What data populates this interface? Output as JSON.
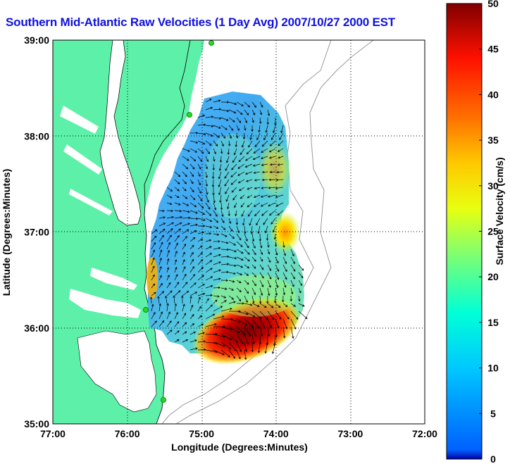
{
  "title": "Southern Mid-Atlantic Raw Velocities (1 Day Avg) 2007/10/27 2000 EST",
  "map": {
    "xlabel": "Longitude (Degrees:Minutes)",
    "ylabel": "Latitude (Degrees:Minutes)",
    "lon_ticks": [
      "77:00",
      "76:00",
      "75:00",
      "74:00",
      "73:00",
      "72:00"
    ],
    "lat_ticks": [
      "39:00",
      "38:00",
      "37:00",
      "36:00",
      "35:00"
    ],
    "lon_range": [
      -77,
      -72
    ],
    "lat_range": [
      35,
      39
    ],
    "land_color": "#5cf0a8",
    "gridlines": "dotted"
  },
  "colorbar": {
    "label": "Surface Velocity (cm/s)",
    "ticks": [
      "50",
      "45",
      "40",
      "35",
      "30",
      "25",
      "20",
      "15",
      "10",
      "5",
      "0"
    ],
    "range": [
      0,
      50
    ],
    "colormap": "jet"
  }
}
